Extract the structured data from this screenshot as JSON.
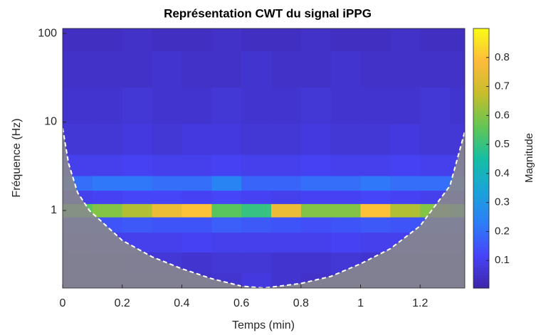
{
  "chart_data": {
    "type": "heatmap",
    "title": "Représentation CWT du signal iPPG",
    "x_label": "Temps (min)",
    "y_label": "Fréquence (Hz)",
    "colorbar_label": "Magnitude",
    "xlim": [
      0,
      1.35
    ],
    "ylim": [
      0.133,
      114
    ],
    "y_log": true,
    "xticks": [
      0,
      0.2,
      0.4,
      0.6,
      0.8,
      1,
      1.2
    ],
    "yticks": [
      1,
      10,
      100
    ],
    "clim": [
      0.005,
      0.9
    ],
    "cticks": [
      0.1,
      0.2,
      0.3,
      0.4,
      0.5,
      0.6,
      0.7,
      0.8
    ],
    "colormap": [
      "#3e26a8",
      "#4743f8",
      "#2d7df9",
      "#1aa3d9",
      "#16bea4",
      "#63c653",
      "#c7bd2b",
      "#fdbb3c",
      "#f9fb15"
    ],
    "x": [
      0.05,
      0.15,
      0.25,
      0.35,
      0.45,
      0.55,
      0.65,
      0.75,
      0.85,
      0.95,
      1.05,
      1.15,
      1.25,
      1.35
    ],
    "y": [
      100,
      40,
      15,
      6,
      3,
      2,
      1.4,
      1,
      0.7,
      0.45,
      0.25,
      0.15
    ],
    "z": [
      [
        0.04,
        0.04,
        0.05,
        0.04,
        0.04,
        0.05,
        0.04,
        0.04,
        0.05,
        0.04,
        0.04,
        0.05,
        0.04,
        0.04
      ],
      [
        0.05,
        0.05,
        0.05,
        0.06,
        0.05,
        0.05,
        0.06,
        0.05,
        0.05,
        0.06,
        0.05,
        0.05,
        0.05,
        0.05
      ],
      [
        0.06,
        0.06,
        0.07,
        0.06,
        0.06,
        0.07,
        0.06,
        0.06,
        0.07,
        0.06,
        0.06,
        0.06,
        0.07,
        0.06
      ],
      [
        0.07,
        0.07,
        0.08,
        0.07,
        0.08,
        0.08,
        0.07,
        0.07,
        0.08,
        0.07,
        0.07,
        0.08,
        0.07,
        0.07
      ],
      [
        0.1,
        0.1,
        0.11,
        0.1,
        0.1,
        0.11,
        0.1,
        0.1,
        0.11,
        0.1,
        0.1,
        0.11,
        0.1,
        0.1
      ],
      [
        0.2,
        0.22,
        0.22,
        0.2,
        0.2,
        0.25,
        0.18,
        0.18,
        0.2,
        0.2,
        0.22,
        0.2,
        0.2,
        0.2
      ],
      [
        0.1,
        0.11,
        0.12,
        0.12,
        0.11,
        0.12,
        0.11,
        0.1,
        0.11,
        0.11,
        0.12,
        0.11,
        0.1,
        0.1
      ],
      [
        0.55,
        0.6,
        0.65,
        0.75,
        0.8,
        0.55,
        0.5,
        0.75,
        0.6,
        0.6,
        0.8,
        0.65,
        0.6,
        0.55
      ],
      [
        0.14,
        0.15,
        0.16,
        0.15,
        0.15,
        0.17,
        0.16,
        0.15,
        0.14,
        0.15,
        0.16,
        0.15,
        0.15,
        0.14
      ],
      [
        0.09,
        0.1,
        0.1,
        0.1,
        0.11,
        0.1,
        0.1,
        0.1,
        0.1,
        0.11,
        0.1,
        0.1,
        0.09,
        0.09
      ],
      [
        0.06,
        0.06,
        0.07,
        0.07,
        0.06,
        0.07,
        0.07,
        0.06,
        0.06,
        0.07,
        0.06,
        0.06,
        0.06,
        0.06
      ],
      [
        0.05,
        0.05,
        0.06,
        0.06,
        0.05,
        0.06,
        0.08,
        0.06,
        0.05,
        0.05,
        0.05,
        0.05,
        0.05,
        0.05
      ]
    ],
    "coi": {
      "x": [
        0,
        0.02,
        0.05,
        0.09,
        0.2,
        0.3,
        0.4,
        0.5,
        0.6,
        0.675,
        0.8,
        0.9,
        1,
        1.1,
        1.2,
        1.3,
        1.35
      ],
      "f": [
        8.5,
        3.4,
        1.6,
        1,
        0.46,
        0.3,
        0.22,
        0.17,
        0.14,
        0.133,
        0.15,
        0.18,
        0.25,
        0.37,
        0.67,
        1.9,
        7.8
      ]
    }
  }
}
